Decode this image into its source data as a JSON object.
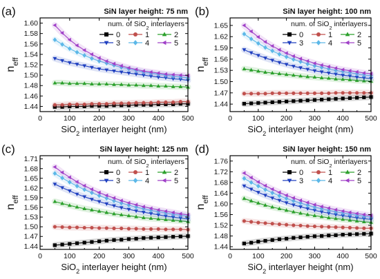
{
  "chart_data": [
    {
      "type": "line",
      "panel_label": "(a)",
      "title": "SiN layer height: 75 nm",
      "xlabel": "SiO2 interlayer height (nm)",
      "ylabel": "neff",
      "xlim": [
        0,
        500
      ],
      "ylim": [
        1.43,
        1.61
      ],
      "xticks": [
        0,
        100,
        200,
        300,
        400,
        500
      ],
      "yticks": [
        1.44,
        1.46,
        1.48,
        1.5,
        1.52,
        1.54,
        1.56,
        1.58,
        1.6
      ],
      "legend_title": "num. of SiO2 interlayers",
      "x": [
        50,
        75,
        100,
        125,
        150,
        175,
        200,
        225,
        250,
        275,
        300,
        325,
        350,
        375,
        400,
        425,
        450,
        475,
        500
      ],
      "series": [
        {
          "name": "0",
          "marker": "square",
          "color": "#000000",
          "values": [
            1.439,
            1.439,
            1.44,
            1.44,
            1.44,
            1.441,
            1.441,
            1.441,
            1.442,
            1.442,
            1.442,
            1.443,
            1.443,
            1.443,
            1.444,
            1.444,
            1.444,
            1.445,
            1.445
          ]
        },
        {
          "name": "1",
          "marker": "circle",
          "color": "#c0504d",
          "values": [
            1.443,
            1.443,
            1.444,
            1.444,
            1.444,
            1.445,
            1.445,
            1.445,
            1.446,
            1.446,
            1.446,
            1.447,
            1.447,
            1.447,
            1.448,
            1.448,
            1.448,
            1.449,
            1.449
          ]
        },
        {
          "name": "2",
          "marker": "triangle-up",
          "color": "#2ca02c",
          "values": [
            1.485,
            1.485,
            1.484,
            1.484,
            1.484,
            1.483,
            1.483,
            1.483,
            1.482,
            1.482,
            1.481,
            1.481,
            1.48,
            1.48,
            1.479,
            1.479,
            1.478,
            1.478,
            1.477
          ]
        },
        {
          "name": "3",
          "marker": "triangle-down",
          "color": "#1f3fbf",
          "values": [
            1.532,
            1.528,
            1.524,
            1.521,
            1.518,
            1.515,
            1.512,
            1.51,
            1.508,
            1.506,
            1.504,
            1.502,
            1.5,
            1.498,
            1.496,
            1.495,
            1.493,
            1.492,
            1.49
          ]
        },
        {
          "name": "4",
          "marker": "diamond",
          "color": "#5cb8e8",
          "values": [
            1.568,
            1.559,
            1.551,
            1.544,
            1.538,
            1.532,
            1.527,
            1.523,
            1.519,
            1.515,
            1.512,
            1.509,
            1.506,
            1.504,
            1.502,
            1.5,
            1.498,
            1.497,
            1.495
          ]
        },
        {
          "name": "5",
          "marker": "triangle-left",
          "color": "#a040c8",
          "values": [
            1.596,
            1.581,
            1.568,
            1.557,
            1.548,
            1.54,
            1.533,
            1.527,
            1.522,
            1.518,
            1.514,
            1.511,
            1.508,
            1.506,
            1.504,
            1.502,
            1.501,
            1.5,
            1.499
          ]
        }
      ]
    },
    {
      "type": "line",
      "panel_label": "(b)",
      "title": "SiN layer height: 100 nm",
      "xlabel": "SiO2 interlayer height (nm)",
      "ylabel": "neff",
      "xlim": [
        0,
        500
      ],
      "ylim": [
        1.42,
        1.67
      ],
      "xticks": [
        0,
        100,
        200,
        300,
        400,
        500
      ],
      "yticks": [
        1.44,
        1.47,
        1.5,
        1.53,
        1.56,
        1.59,
        1.62,
        1.65
      ],
      "legend_title": "num. of SiO2 interlayers",
      "x": [
        50,
        75,
        100,
        125,
        150,
        175,
        200,
        225,
        250,
        275,
        300,
        325,
        350,
        375,
        400,
        425,
        450,
        475,
        500
      ],
      "series": [
        {
          "name": "0",
          "marker": "square",
          "color": "#000000",
          "values": [
            1.441,
            1.442,
            1.443,
            1.444,
            1.445,
            1.446,
            1.447,
            1.448,
            1.449,
            1.45,
            1.451,
            1.452,
            1.453,
            1.454,
            1.455,
            1.456,
            1.457,
            1.458,
            1.459
          ]
        },
        {
          "name": "1",
          "marker": "circle",
          "color": "#c0504d",
          "values": [
            1.468,
            1.468,
            1.468,
            1.468,
            1.469,
            1.469,
            1.469,
            1.469,
            1.469,
            1.469,
            1.469,
            1.469,
            1.469,
            1.47,
            1.47,
            1.47,
            1.47,
            1.47,
            1.47
          ]
        },
        {
          "name": "2",
          "marker": "triangle-up",
          "color": "#2ca02c",
          "values": [
            1.534,
            1.531,
            1.528,
            1.525,
            1.523,
            1.521,
            1.519,
            1.517,
            1.515,
            1.513,
            1.512,
            1.51,
            1.509,
            1.507,
            1.506,
            1.505,
            1.503,
            1.502,
            1.501
          ]
        },
        {
          "name": "3",
          "marker": "triangle-down",
          "color": "#1f3fbf",
          "values": [
            1.585,
            1.577,
            1.57,
            1.563,
            1.557,
            1.551,
            1.546,
            1.541,
            1.537,
            1.533,
            1.529,
            1.526,
            1.523,
            1.52,
            1.517,
            1.515,
            1.512,
            1.51,
            1.508
          ]
        },
        {
          "name": "4",
          "marker": "diamond",
          "color": "#5cb8e8",
          "values": [
            1.627,
            1.614,
            1.602,
            1.591,
            1.582,
            1.573,
            1.566,
            1.559,
            1.553,
            1.547,
            1.542,
            1.538,
            1.534,
            1.53,
            1.527,
            1.524,
            1.521,
            1.518,
            1.516
          ]
        },
        {
          "name": "5",
          "marker": "triangle-left",
          "color": "#a040c8",
          "values": [
            1.65,
            1.634,
            1.619,
            1.606,
            1.595,
            1.585,
            1.576,
            1.568,
            1.561,
            1.555,
            1.549,
            1.544,
            1.54,
            1.536,
            1.532,
            1.529,
            1.526,
            1.523,
            1.521
          ]
        }
      ]
    },
    {
      "type": "line",
      "panel_label": "(c)",
      "title": "SiN layer height: 125 nm",
      "xlabel": "SiO2 interlayer height (nm)",
      "ylabel": "neff",
      "xlim": [
        0,
        500
      ],
      "ylim": [
        1.43,
        1.72
      ],
      "xticks": [
        0,
        100,
        200,
        300,
        400,
        500
      ],
      "yticks": [
        1.44,
        1.47,
        1.5,
        1.53,
        1.56,
        1.59,
        1.62,
        1.65,
        1.68,
        1.71
      ],
      "legend_title": "num. of SiO2 interlayers",
      "x": [
        50,
        75,
        100,
        125,
        150,
        175,
        200,
        225,
        250,
        275,
        300,
        325,
        350,
        375,
        400,
        425,
        450,
        475,
        500
      ],
      "series": [
        {
          "name": "0",
          "marker": "square",
          "color": "#000000",
          "values": [
            1.443,
            1.445,
            1.447,
            1.449,
            1.451,
            1.453,
            1.455,
            1.457,
            1.459,
            1.46,
            1.462,
            1.463,
            1.465,
            1.466,
            1.467,
            1.468,
            1.469,
            1.47,
            1.471
          ]
        },
        {
          "name": "1",
          "marker": "circle",
          "color": "#c0504d",
          "values": [
            1.5,
            1.499,
            1.498,
            1.498,
            1.497,
            1.497,
            1.496,
            1.496,
            1.495,
            1.495,
            1.494,
            1.494,
            1.493,
            1.493,
            1.493,
            1.492,
            1.492,
            1.492,
            1.491
          ]
        },
        {
          "name": "2",
          "marker": "triangle-up",
          "color": "#2ca02c",
          "values": [
            1.578,
            1.572,
            1.566,
            1.561,
            1.556,
            1.552,
            1.548,
            1.544,
            1.54,
            1.537,
            1.534,
            1.531,
            1.528,
            1.526,
            1.524,
            1.522,
            1.52,
            1.518,
            1.516
          ]
        },
        {
          "name": "3",
          "marker": "triangle-down",
          "color": "#1f3fbf",
          "values": [
            1.632,
            1.621,
            1.611,
            1.601,
            1.593,
            1.585,
            1.578,
            1.571,
            1.565,
            1.559,
            1.554,
            1.549,
            1.545,
            1.541,
            1.537,
            1.533,
            1.53,
            1.527,
            1.524
          ]
        },
        {
          "name": "4",
          "marker": "diamond",
          "color": "#5cb8e8",
          "values": [
            1.665,
            1.651,
            1.638,
            1.626,
            1.615,
            1.605,
            1.596,
            1.588,
            1.58,
            1.573,
            1.567,
            1.561,
            1.556,
            1.551,
            1.547,
            1.543,
            1.539,
            1.536,
            1.533
          ]
        },
        {
          "name": "5",
          "marker": "triangle-left",
          "color": "#a040c8",
          "values": [
            1.685,
            1.668,
            1.653,
            1.639,
            1.627,
            1.616,
            1.606,
            1.597,
            1.589,
            1.581,
            1.574,
            1.568,
            1.562,
            1.557,
            1.552,
            1.548,
            1.544,
            1.54,
            1.537
          ]
        }
      ]
    },
    {
      "type": "line",
      "panel_label": "(d)",
      "title": "SiN layer height: 150 nm",
      "xlabel": "SiO2 interlayer height (nm)",
      "ylabel": "neff",
      "xlim": [
        0,
        500
      ],
      "ylim": [
        1.43,
        1.78
      ],
      "xticks": [
        0,
        100,
        200,
        300,
        400,
        500
      ],
      "yticks": [
        1.44,
        1.48,
        1.52,
        1.56,
        1.6,
        1.64,
        1.68,
        1.72,
        1.76
      ],
      "legend_title": "num. of SiO2 interlayers",
      "x": [
        50,
        75,
        100,
        125,
        150,
        175,
        200,
        225,
        250,
        275,
        300,
        325,
        350,
        375,
        400,
        425,
        450,
        475,
        500
      ],
      "series": [
        {
          "name": "0",
          "marker": "square",
          "color": "#000000",
          "values": [
            1.452,
            1.455,
            1.459,
            1.462,
            1.465,
            1.468,
            1.47,
            1.473,
            1.475,
            1.477,
            1.479,
            1.48,
            1.482,
            1.483,
            1.485,
            1.486,
            1.487,
            1.488,
            1.489
          ]
        },
        {
          "name": "1",
          "marker": "circle",
          "color": "#c0504d",
          "values": [
            1.536,
            1.533,
            1.53,
            1.528,
            1.526,
            1.524,
            1.522,
            1.52,
            1.519,
            1.517,
            1.516,
            1.515,
            1.514,
            1.513,
            1.512,
            1.511,
            1.51,
            1.509,
            1.509
          ]
        },
        {
          "name": "2",
          "marker": "triangle-up",
          "color": "#2ca02c",
          "values": [
            1.62,
            1.611,
            1.603,
            1.595,
            1.588,
            1.582,
            1.576,
            1.57,
            1.565,
            1.56,
            1.556,
            1.552,
            1.548,
            1.545,
            1.542,
            1.539,
            1.536,
            1.533,
            1.531
          ]
        },
        {
          "name": "3",
          "marker": "triangle-down",
          "color": "#1f3fbf",
          "values": [
            1.667,
            1.655,
            1.643,
            1.632,
            1.622,
            1.613,
            1.604,
            1.596,
            1.589,
            1.582,
            1.576,
            1.57,
            1.565,
            1.56,
            1.556,
            1.552,
            1.548,
            1.545,
            1.542
          ]
        },
        {
          "name": "4",
          "marker": "diamond",
          "color": "#5cb8e8",
          "values": [
            1.695,
            1.68,
            1.666,
            1.653,
            1.641,
            1.63,
            1.62,
            1.611,
            1.603,
            1.595,
            1.588,
            1.582,
            1.576,
            1.571,
            1.566,
            1.562,
            1.558,
            1.554,
            1.551
          ]
        },
        {
          "name": "5",
          "marker": "triangle-left",
          "color": "#a040c8",
          "values": [
            1.715,
            1.698,
            1.682,
            1.668,
            1.655,
            1.643,
            1.632,
            1.622,
            1.613,
            1.605,
            1.597,
            1.59,
            1.584,
            1.578,
            1.573,
            1.568,
            1.564,
            1.56,
            1.556
          ]
        }
      ]
    }
  ]
}
